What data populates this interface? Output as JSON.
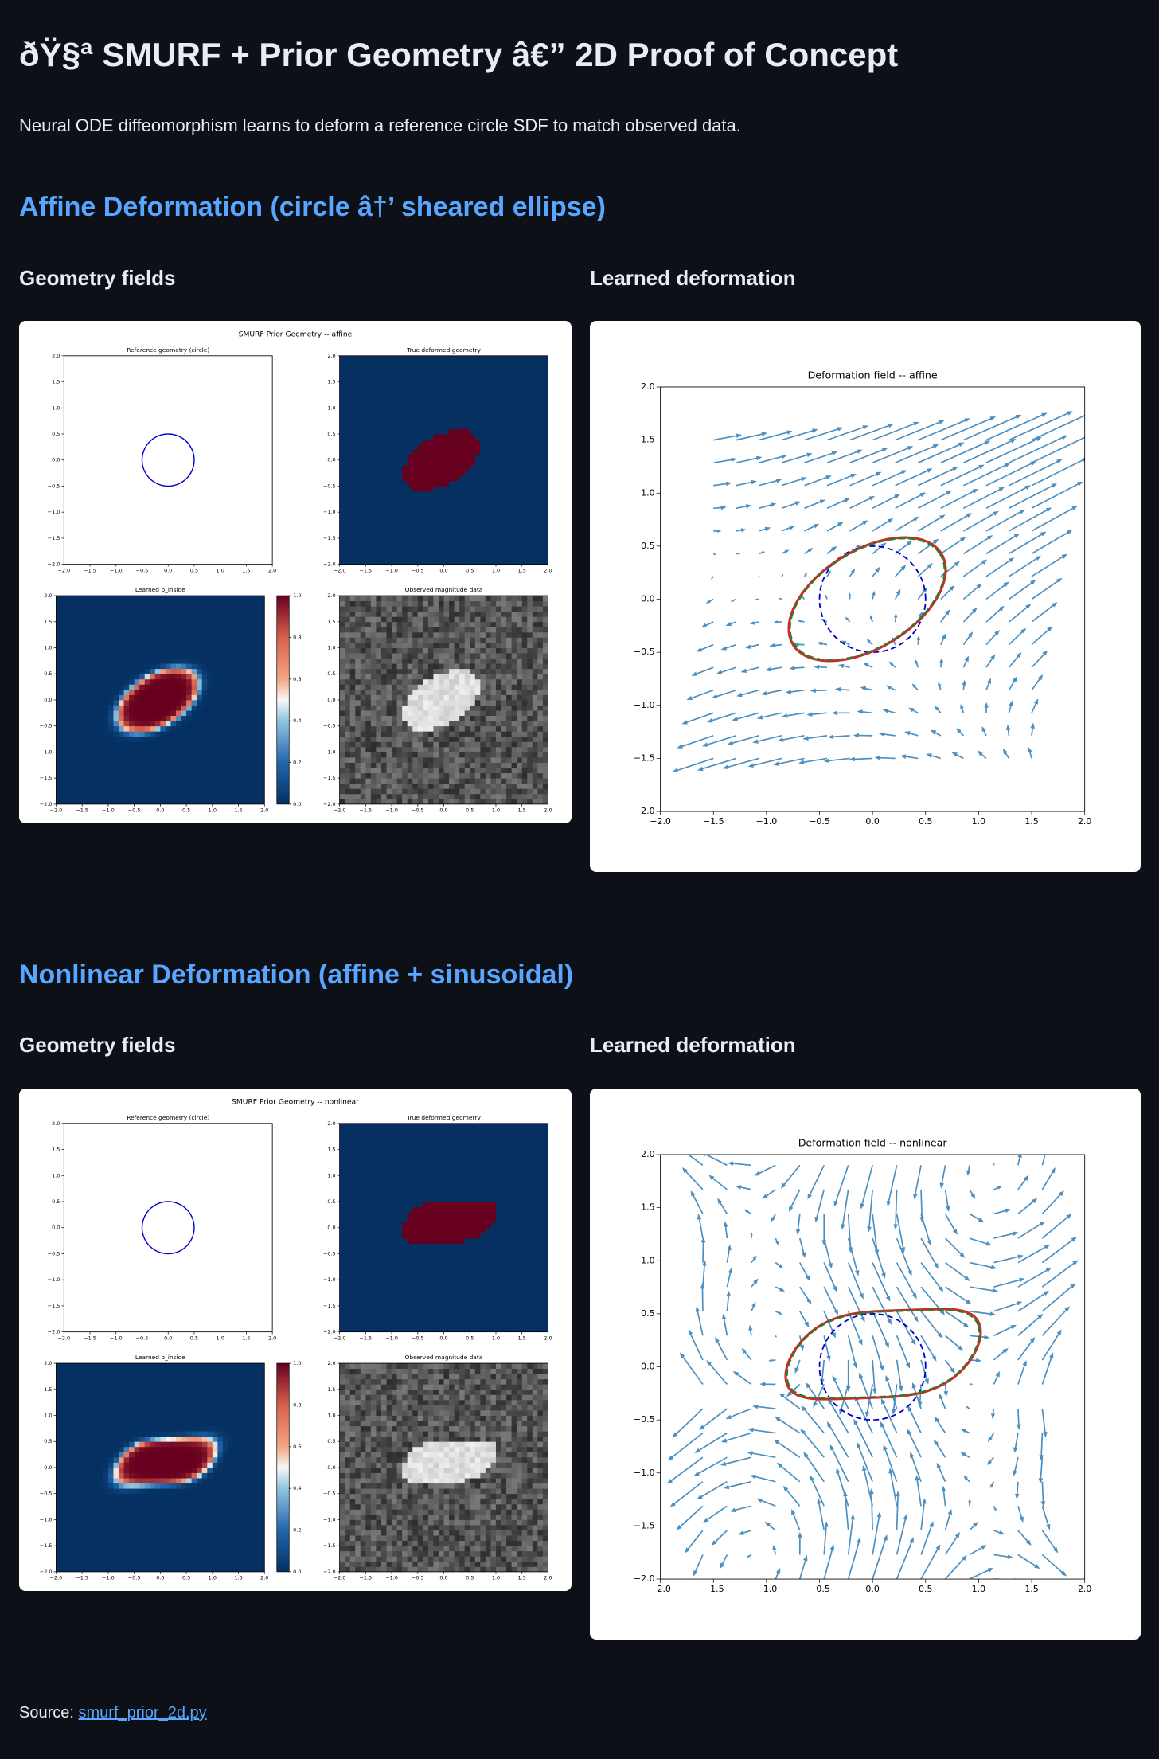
{
  "header": {
    "title": "ðŸ§ª SMURF + Prior Geometry â€” 2D Proof of Concept",
    "subtitle": "Neural ODE diffeomorphism learns to deform a reference circle SDF to match observed data."
  },
  "sections": [
    {
      "heading": "Affine Deformation (circle â†’ sheared ellipse)",
      "geometry": {
        "heading": "Geometry fields",
        "figure": {
          "title": "SMURF Prior Geometry -- affine",
          "panels": [
            "Reference geometry (circle)",
            "True deformed geometry",
            "Learned p_inside",
            "Observed magnitude data"
          ],
          "xlim": [
            -2,
            2
          ],
          "ylim": [
            -2,
            2
          ],
          "ticks": [
            {
              "value": -2,
              "label": "−2.0"
            },
            {
              "value": -1.5,
              "label": "−1.5"
            },
            {
              "value": -1,
              "label": "−1.0"
            },
            {
              "value": -0.5,
              "label": "−0.5"
            },
            {
              "value": 0,
              "label": "0.0"
            },
            {
              "value": 0.5,
              "label": "0.5"
            },
            {
              "value": 1,
              "label": "1.0"
            },
            {
              "value": 1.5,
              "label": "1.5"
            },
            {
              "value": 2,
              "label": "2.0"
            }
          ],
          "colorbar_lim": [
            0,
            1
          ],
          "colorbar_ticks": [
            {
              "value": 0,
              "label": "0.0"
            },
            {
              "value": 0.2,
              "label": "0.2"
            },
            {
              "value": 0.4,
              "label": "0.4"
            },
            {
              "value": 0.6,
              "label": "0.6"
            },
            {
              "value": 0.8,
              "label": "0.8"
            },
            {
              "value": 1,
              "label": "1.0"
            }
          ]
        }
      },
      "deformation": {
        "heading": "Learned deformation",
        "figure": {
          "title": "Deformation field -- affine",
          "xlim": [
            -2,
            2
          ],
          "ylim": [
            -2,
            2
          ],
          "ticks": [
            {
              "value": -2,
              "label": "−2.0"
            },
            {
              "value": -1.5,
              "label": "−1.5"
            },
            {
              "value": -1,
              "label": "−1.0"
            },
            {
              "value": -0.5,
              "label": "−0.5"
            },
            {
              "value": 0,
              "label": "0.0"
            },
            {
              "value": 0.5,
              "label": "0.5"
            },
            {
              "value": 1,
              "label": "1.0"
            },
            {
              "value": 1.5,
              "label": "1.5"
            },
            {
              "value": 2,
              "label": "2.0"
            }
          ]
        }
      }
    },
    {
      "heading": "Nonlinear Deformation (affine + sinusoidal)",
      "geometry": {
        "heading": "Geometry fields",
        "figure": {
          "title": "SMURF Prior Geometry -- nonlinear",
          "panels": [
            "Reference geometry (circle)",
            "True deformed geometry",
            "Learned p_inside",
            "Observed magnitude data"
          ],
          "xlim": [
            -2,
            2
          ],
          "ylim": [
            -2,
            2
          ],
          "ticks": [
            {
              "value": -2,
              "label": "−2.0"
            },
            {
              "value": -1.5,
              "label": "−1.5"
            },
            {
              "value": -1,
              "label": "−1.0"
            },
            {
              "value": -0.5,
              "label": "−0.5"
            },
            {
              "value": 0,
              "label": "0.0"
            },
            {
              "value": 0.5,
              "label": "0.5"
            },
            {
              "value": 1,
              "label": "1.0"
            },
            {
              "value": 1.5,
              "label": "1.5"
            },
            {
              "value": 2,
              "label": "2.0"
            }
          ],
          "colorbar_lim": [
            0,
            1
          ],
          "colorbar_ticks": [
            {
              "value": 0,
              "label": "0.0"
            },
            {
              "value": 0.2,
              "label": "0.2"
            },
            {
              "value": 0.4,
              "label": "0.4"
            },
            {
              "value": 0.6,
              "label": "0.6"
            },
            {
              "value": 0.8,
              "label": "0.8"
            },
            {
              "value": 1,
              "label": "1.0"
            }
          ]
        }
      },
      "deformation": {
        "heading": "Learned deformation",
        "figure": {
          "title": "Deformation field -- nonlinear",
          "xlim": [
            -2,
            2
          ],
          "ylim": [
            -2,
            2
          ],
          "ticks": [
            {
              "value": -2,
              "label": "−2.0"
            },
            {
              "value": -1.5,
              "label": "−1.5"
            },
            {
              "value": -1,
              "label": "−1.0"
            },
            {
              "value": -0.5,
              "label": "−0.5"
            },
            {
              "value": 0,
              "label": "0.0"
            },
            {
              "value": 0.5,
              "label": "0.5"
            },
            {
              "value": 1,
              "label": "1.0"
            },
            {
              "value": 1.5,
              "label": "1.5"
            },
            {
              "value": 2,
              "label": "2.0"
            }
          ]
        }
      }
    }
  ],
  "footer": {
    "label": "Source:",
    "link": "smurf_prior_2d.py"
  }
}
